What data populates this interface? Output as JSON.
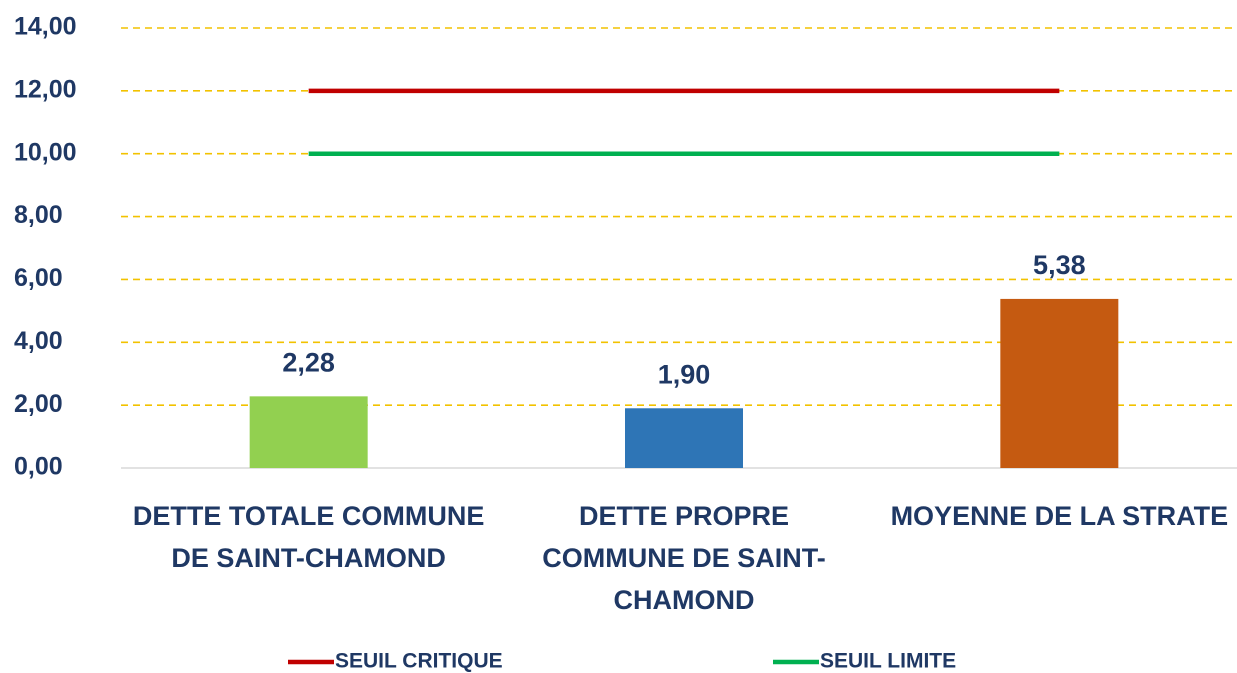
{
  "chart_data": {
    "type": "bar",
    "categories": [
      "DETTE TOTALE COMMUNE DE SAINT-CHAMOND",
      "DETTE PROPRE COMMUNE DE SAINT-CHAMOND",
      "MOYENNE DE LA STRATE"
    ],
    "values": [
      2.28,
      1.9,
      5.38
    ],
    "value_labels": [
      "2,28",
      "1,90",
      "5,38"
    ],
    "colors": [
      "#92d050",
      "#2e75b6",
      "#c55a11"
    ],
    "series": [
      {
        "name": "SEUIL CRITIQUE",
        "color": "#c00000",
        "values": [
          12,
          12,
          12
        ]
      },
      {
        "name": "SEUIL LIMITE",
        "color": "#00b050",
        "values": [
          10,
          10,
          10
        ]
      }
    ],
    "ylim": [
      0,
      14
    ],
    "yticks": [
      {
        "value": 0,
        "label": "0,00"
      },
      {
        "value": 2,
        "label": "2,00"
      },
      {
        "value": 4,
        "label": "4,00"
      },
      {
        "value": 6,
        "label": "6,00"
      },
      {
        "value": 8,
        "label": "8,00"
      },
      {
        "value": 10,
        "label": "10,00"
      },
      {
        "value": 12,
        "label": "12,00"
      },
      {
        "value": 14,
        "label": "14,00"
      }
    ],
    "grid": true
  }
}
